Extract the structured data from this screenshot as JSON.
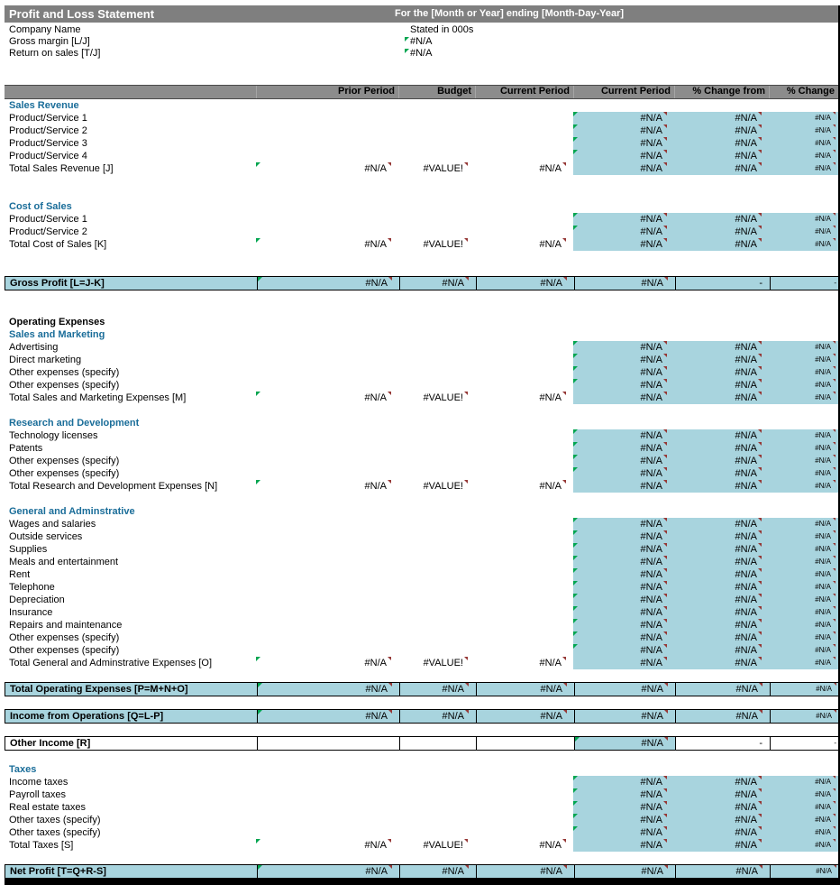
{
  "meta": {
    "title": "Profit and Loss Statement",
    "period": "For the [Month or Year] ending [Month-Day-Year]"
  },
  "info": {
    "company_name": "Company Name",
    "stated_in": "Stated in 000s",
    "gross_margin_label": "Gross margin  [L/J]",
    "gross_margin_value": "#N/A",
    "return_on_sales_label": "Return on sales  [T/J]",
    "return_on_sales_value": "#N/A"
  },
  "columns": [
    "Prior Period",
    "Budget",
    "Current Period",
    "Current Period",
    "% Change from",
    "% Change"
  ],
  "column_keys": [
    "prior-period",
    "budget",
    "current-period",
    "current-period-highlight",
    "pct-change-from",
    "pct-change"
  ],
  "colors": {
    "title_bar_gray": "#7F7F7F",
    "band_gray": "#8C8C8C",
    "highlight_cyan": "#A8D4DE",
    "heading_blue": "#1A6D99",
    "marker_green": "#00A550",
    "marker_red": "#953735"
  },
  "rows": [
    {
      "type": "section",
      "label": "Sales Revenue"
    },
    {
      "type": "item",
      "label": "Product/Service 1",
      "values": [
        "",
        "",
        "",
        "#N/A",
        "#N/A",
        "#N/A"
      ],
      "cyan": [
        3,
        4,
        5
      ],
      "green": [
        3
      ]
    },
    {
      "type": "item",
      "label": "Product/Service 2",
      "values": [
        "",
        "",
        "",
        "#N/A",
        "#N/A",
        "#N/A"
      ],
      "cyan": [
        3,
        4,
        5
      ],
      "green": [
        3
      ]
    },
    {
      "type": "item",
      "label": "Product/Service 3",
      "values": [
        "",
        "",
        "",
        "#N/A",
        "#N/A",
        "#N/A"
      ],
      "cyan": [
        3,
        4,
        5
      ],
      "green": [
        3
      ]
    },
    {
      "type": "item",
      "label": "Product/Service 4",
      "values": [
        "",
        "",
        "",
        "#N/A",
        "#N/A",
        "#N/A"
      ],
      "cyan": [
        3,
        4,
        5
      ],
      "green": [
        3
      ]
    },
    {
      "type": "total",
      "label": "Total Sales Revenue  [J]",
      "values": [
        "#N/A",
        "#VALUE!",
        "#N/A",
        "#N/A",
        "#N/A",
        "#N/A"
      ],
      "cyan": [
        3,
        4,
        5
      ],
      "green": [
        0
      ]
    },
    {
      "type": "blank"
    },
    {
      "type": "blank"
    },
    {
      "type": "section",
      "label": "Cost of Sales"
    },
    {
      "type": "item",
      "label": "Product/Service 1",
      "values": [
        "",
        "",
        "",
        "#N/A",
        "#N/A",
        "#N/A"
      ],
      "cyan": [
        3,
        4,
        5
      ],
      "green": [
        3
      ]
    },
    {
      "type": "item",
      "label": "Product/Service 2",
      "values": [
        "",
        "",
        "",
        "#N/A",
        "#N/A",
        "#N/A"
      ],
      "cyan": [
        3,
        4,
        5
      ],
      "green": [
        3
      ]
    },
    {
      "type": "total",
      "label": "Total Cost of Sales  [K]",
      "values": [
        "#N/A",
        "#VALUE!",
        "#N/A",
        "#N/A",
        "#N/A",
        "#N/A"
      ],
      "cyan": [
        3,
        4,
        5
      ],
      "green": [
        0
      ]
    },
    {
      "type": "blank"
    },
    {
      "type": "blank"
    },
    {
      "type": "highlight",
      "label": "Gross Profit  [L=J-K]",
      "values": [
        "#N/A",
        "#N/A",
        "#N/A",
        "#N/A",
        "-",
        "-"
      ],
      "cyan": [],
      "green": [
        0
      ]
    },
    {
      "type": "blank"
    },
    {
      "type": "blank"
    },
    {
      "type": "boldrow",
      "label": "Operating Expenses"
    },
    {
      "type": "section",
      "label": "Sales and Marketing"
    },
    {
      "type": "item",
      "label": "Advertising",
      "values": [
        "",
        "",
        "",
        "#N/A",
        "#N/A",
        "#N/A"
      ],
      "cyan": [
        3,
        4,
        5
      ],
      "green": [
        3
      ]
    },
    {
      "type": "item",
      "label": "Direct marketing",
      "values": [
        "",
        "",
        "",
        "#N/A",
        "#N/A",
        "#N/A"
      ],
      "cyan": [
        3,
        4,
        5
      ],
      "green": [
        3
      ]
    },
    {
      "type": "item",
      "label": "Other expenses (specify)",
      "values": [
        "",
        "",
        "",
        "#N/A",
        "#N/A",
        "#N/A"
      ],
      "cyan": [
        3,
        4,
        5
      ],
      "green": [
        3
      ]
    },
    {
      "type": "item",
      "label": "Other expenses (specify)",
      "values": [
        "",
        "",
        "",
        "#N/A",
        "#N/A",
        "#N/A"
      ],
      "cyan": [
        3,
        4,
        5
      ],
      "green": [
        3
      ]
    },
    {
      "type": "total",
      "label": "Total Sales and Marketing Expenses  [M]",
      "values": [
        "#N/A",
        "#VALUE!",
        "#N/A",
        "#N/A",
        "#N/A",
        "#N/A"
      ],
      "cyan": [
        3,
        4,
        5
      ],
      "green": [
        0
      ]
    },
    {
      "type": "blank"
    },
    {
      "type": "section",
      "label": "Research and Development"
    },
    {
      "type": "item",
      "label": "Technology licenses",
      "values": [
        "",
        "",
        "",
        "#N/A",
        "#N/A",
        "#N/A"
      ],
      "cyan": [
        3,
        4,
        5
      ],
      "green": [
        3
      ]
    },
    {
      "type": "item",
      "label": "Patents",
      "values": [
        "",
        "",
        "",
        "#N/A",
        "#N/A",
        "#N/A"
      ],
      "cyan": [
        3,
        4,
        5
      ],
      "green": [
        3
      ]
    },
    {
      "type": "item",
      "label": "Other expenses (specify)",
      "values": [
        "",
        "",
        "",
        "#N/A",
        "#N/A",
        "#N/A"
      ],
      "cyan": [
        3,
        4,
        5
      ],
      "green": [
        3
      ]
    },
    {
      "type": "item",
      "label": "Other expenses (specify)",
      "values": [
        "",
        "",
        "",
        "#N/A",
        "#N/A",
        "#N/A"
      ],
      "cyan": [
        3,
        4,
        5
      ],
      "green": [
        3
      ]
    },
    {
      "type": "total",
      "label": "Total Research and Development Expenses  [N]",
      "values": [
        "#N/A",
        "#VALUE!",
        "#N/A",
        "#N/A",
        "#N/A",
        "#N/A"
      ],
      "cyan": [
        3,
        4,
        5
      ],
      "green": [
        0
      ]
    },
    {
      "type": "blank"
    },
    {
      "type": "section",
      "label": "General and Adminstrative"
    },
    {
      "type": "item",
      "label": "Wages and salaries",
      "values": [
        "",
        "",
        "",
        "#N/A",
        "#N/A",
        "#N/A"
      ],
      "cyan": [
        3,
        4,
        5
      ],
      "green": [
        3
      ]
    },
    {
      "type": "item",
      "label": "Outside services",
      "values": [
        "",
        "",
        "",
        "#N/A",
        "#N/A",
        "#N/A"
      ],
      "cyan": [
        3,
        4,
        5
      ],
      "green": [
        3
      ]
    },
    {
      "type": "item",
      "label": "Supplies",
      "values": [
        "",
        "",
        "",
        "#N/A",
        "#N/A",
        "#N/A"
      ],
      "cyan": [
        3,
        4,
        5
      ],
      "green": [
        3
      ]
    },
    {
      "type": "item",
      "label": "Meals and entertainment",
      "values": [
        "",
        "",
        "",
        "#N/A",
        "#N/A",
        "#N/A"
      ],
      "cyan": [
        3,
        4,
        5
      ],
      "green": [
        3
      ]
    },
    {
      "type": "item",
      "label": "Rent",
      "values": [
        "",
        "",
        "",
        "#N/A",
        "#N/A",
        "#N/A"
      ],
      "cyan": [
        3,
        4,
        5
      ],
      "green": [
        3
      ]
    },
    {
      "type": "item",
      "label": "Telephone",
      "values": [
        "",
        "",
        "",
        "#N/A",
        "#N/A",
        "#N/A"
      ],
      "cyan": [
        3,
        4,
        5
      ],
      "green": [
        3
      ]
    },
    {
      "type": "item",
      "label": "Depreciation",
      "values": [
        "",
        "",
        "",
        "#N/A",
        "#N/A",
        "#N/A"
      ],
      "cyan": [
        3,
        4,
        5
      ],
      "green": [
        3
      ]
    },
    {
      "type": "item",
      "label": "Insurance",
      "values": [
        "",
        "",
        "",
        "#N/A",
        "#N/A",
        "#N/A"
      ],
      "cyan": [
        3,
        4,
        5
      ],
      "green": [
        3
      ]
    },
    {
      "type": "item",
      "label": "Repairs and maintenance",
      "values": [
        "",
        "",
        "",
        "#N/A",
        "#N/A",
        "#N/A"
      ],
      "cyan": [
        3,
        4,
        5
      ],
      "green": [
        3
      ]
    },
    {
      "type": "item",
      "label": "Other expenses (specify)",
      "values": [
        "",
        "",
        "",
        "#N/A",
        "#N/A",
        "#N/A"
      ],
      "cyan": [
        3,
        4,
        5
      ],
      "green": [
        3
      ]
    },
    {
      "type": "item",
      "label": "Other expenses (specify)",
      "values": [
        "",
        "",
        "",
        "#N/A",
        "#N/A",
        "#N/A"
      ],
      "cyan": [
        3,
        4,
        5
      ],
      "green": [
        3
      ]
    },
    {
      "type": "total",
      "label": "Total General and Adminstrative Expenses  [O]",
      "values": [
        "#N/A",
        "#VALUE!",
        "#N/A",
        "#N/A",
        "#N/A",
        "#N/A"
      ],
      "cyan": [
        3,
        4,
        5
      ],
      "green": [
        0
      ]
    },
    {
      "type": "blank"
    },
    {
      "type": "highlight",
      "label": "Total Operating Expenses  [P=M+N+O]",
      "values": [
        "#N/A",
        "#N/A",
        "#N/A",
        "#N/A",
        "#N/A",
        "#N/A"
      ],
      "cyan": [],
      "green": [
        0
      ]
    },
    {
      "type": "blank"
    },
    {
      "type": "highlight",
      "label": "Income from Operations  [Q=L-P]",
      "values": [
        "#N/A",
        "#N/A",
        "#N/A",
        "#N/A",
        "#N/A",
        "#N/A"
      ],
      "cyan": [],
      "green": [
        0
      ]
    },
    {
      "type": "blank"
    },
    {
      "type": "other",
      "label": "Other Income  [R]",
      "values": [
        "",
        "",
        "",
        "#N/A",
        "-",
        "-"
      ],
      "cyan": [
        3
      ],
      "green": [
        3
      ]
    },
    {
      "type": "blank"
    },
    {
      "type": "section",
      "label": "Taxes"
    },
    {
      "type": "item",
      "label": "Income taxes",
      "values": [
        "",
        "",
        "",
        "#N/A",
        "#N/A",
        "#N/A"
      ],
      "cyan": [
        3,
        4,
        5
      ],
      "green": [
        3
      ]
    },
    {
      "type": "item",
      "label": "Payroll taxes",
      "values": [
        "",
        "",
        "",
        "#N/A",
        "#N/A",
        "#N/A"
      ],
      "cyan": [
        3,
        4,
        5
      ],
      "green": [
        3
      ]
    },
    {
      "type": "item",
      "label": "Real estate taxes",
      "values": [
        "",
        "",
        "",
        "#N/A",
        "#N/A",
        "#N/A"
      ],
      "cyan": [
        3,
        4,
        5
      ],
      "green": [
        3
      ]
    },
    {
      "type": "item",
      "label": "Other taxes (specify)",
      "values": [
        "",
        "",
        "",
        "#N/A",
        "#N/A",
        "#N/A"
      ],
      "cyan": [
        3,
        4,
        5
      ],
      "green": [
        3
      ]
    },
    {
      "type": "item",
      "label": "Other taxes (specify)",
      "values": [
        "",
        "",
        "",
        "#N/A",
        "#N/A",
        "#N/A"
      ],
      "cyan": [
        3,
        4,
        5
      ],
      "green": [
        3
      ]
    },
    {
      "type": "total",
      "label": "Total Taxes  [S]",
      "values": [
        "#N/A",
        "#VALUE!",
        "#N/A",
        "#N/A",
        "#N/A",
        "#N/A"
      ],
      "cyan": [
        3,
        4,
        5
      ],
      "green": [
        0
      ]
    },
    {
      "type": "blank"
    },
    {
      "type": "highlight",
      "label": "Net Profit  [T=Q+R-S]",
      "values": [
        "#N/A",
        "#N/A",
        "#N/A",
        "#N/A",
        "#N/A",
        "#N/A"
      ],
      "cyan": [],
      "green": [
        0
      ]
    }
  ]
}
